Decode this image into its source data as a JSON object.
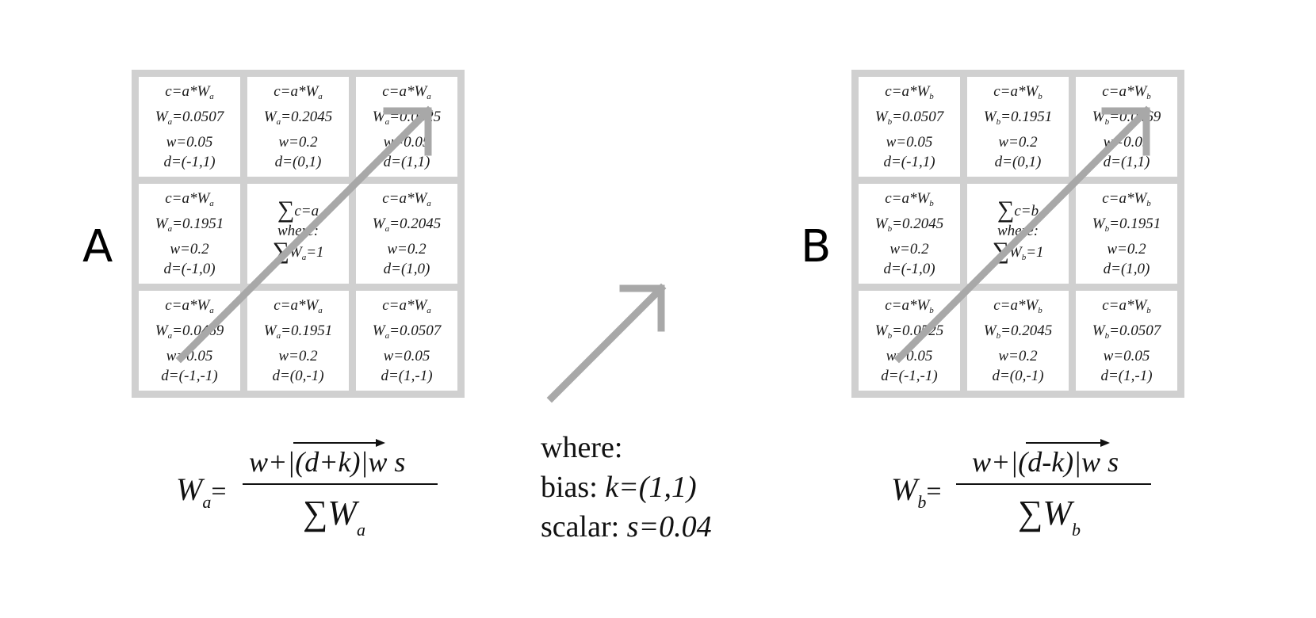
{
  "panel_a": {
    "label": "A",
    "cells": [
      {
        "c": "c=a*W",
        "sub": "a",
        "w_lbl": "W",
        "w_val": "=0.0507",
        "w": "w=0.05",
        "d": "d=(-1,1)"
      },
      {
        "c": "c=a*W",
        "sub": "a",
        "w_lbl": "W",
        "w_val": "=0.2045",
        "w": "w=0.2",
        "d": "d=(0,1)"
      },
      {
        "c": "c=a*W",
        "sub": "a",
        "w_lbl": "W",
        "w_val": "=0.0525",
        "w": "w=0.05",
        "d": "d=(1,1)"
      },
      {
        "c": "c=a*W",
        "sub": "a",
        "w_lbl": "W",
        "w_val": "=0.1951",
        "w": "w=0.2",
        "d": "d=(-1,0)"
      },
      {
        "center": true,
        "sum_text": "c=a",
        "where": "where:",
        "sum2_sub": "a",
        "sum2_val": "=1"
      },
      {
        "c": "c=a*W",
        "sub": "a",
        "w_lbl": "W",
        "w_val": "=0.2045",
        "w": "w=0.2",
        "d": "d=(1,0)"
      },
      {
        "c": "c=a*W",
        "sub": "a",
        "w_lbl": "W",
        "w_val": "=0.0469",
        "w": "w=0.05",
        "d": "d=(-1,-1)"
      },
      {
        "c": "c=a*W",
        "sub": "a",
        "w_lbl": "W",
        "w_val": "=0.1951",
        "w": "w=0.2",
        "d": "d=(0,-1)"
      },
      {
        "c": "c=a*W",
        "sub": "a",
        "w_lbl": "W",
        "w_val": "=0.0507",
        "w": "w=0.05",
        "d": "d=(1,-1)"
      }
    ],
    "formula": {
      "lhs": "W",
      "lhs_sub": "a",
      "eq": "=",
      "num_pre": "w+|(",
      "num_vec": "d+k",
      "num_post": ")|w s",
      "den": "∑W",
      "den_sub": "a"
    }
  },
  "panel_b": {
    "label": "B",
    "cells": [
      {
        "c": "c=a*W",
        "sub": "b",
        "w_lbl": "W",
        "w_val": "=0.0507",
        "w": "w=0.05",
        "d": "d=(-1,1)"
      },
      {
        "c": "c=a*W",
        "sub": "b",
        "w_lbl": "W",
        "w_val": "=0.1951",
        "w": "w=0.2",
        "d": "d=(0,1)"
      },
      {
        "c": "c=a*W",
        "sub": "b",
        "w_lbl": "W",
        "w_val": "=0.0469",
        "w": "w=0.05",
        "d": "d=(1,1)"
      },
      {
        "c": "c=a*W",
        "sub": "b",
        "w_lbl": "W",
        "w_val": "=0.2045",
        "w": "w=0.2",
        "d": "d=(-1,0)"
      },
      {
        "center": true,
        "sum_text": "c=b",
        "where": "where:",
        "sum2_sub": "b",
        "sum2_val": "=1"
      },
      {
        "c": "c=a*W",
        "sub": "b",
        "w_lbl": "W",
        "w_val": "=0.1951",
        "w": "w=0.2",
        "d": "d=(1,0)"
      },
      {
        "c": "c=a*W",
        "sub": "b",
        "w_lbl": "W",
        "w_val": "=0.0525",
        "w": "w=0.05",
        "d": "d=(-1,-1)"
      },
      {
        "c": "c=a*W",
        "sub": "b",
        "w_lbl": "W",
        "w_val": "=0.2045",
        "w": "w=0.2",
        "d": "d=(0,-1)"
      },
      {
        "c": "c=a*W",
        "sub": "b",
        "w_lbl": "W",
        "w_val": "=0.0507",
        "w": "w=0.05",
        "d": "d=(1,-1)"
      }
    ],
    "formula": {
      "lhs": "W",
      "lhs_sub": "b",
      "eq": "=",
      "num_pre": "w+|(",
      "num_vec": "d-k",
      "num_post": ")|w s",
      "den": "∑W",
      "den_sub": "b"
    }
  },
  "legend": {
    "line1": "where:",
    "line2_label": "bias: ",
    "line2_value": "k=(1,1)",
    "line3_label": "scalar: ",
    "line3_value": "s=0.04"
  },
  "colors": {
    "grid": "#d0d0d0",
    "arrow": "#a8a8a8"
  }
}
